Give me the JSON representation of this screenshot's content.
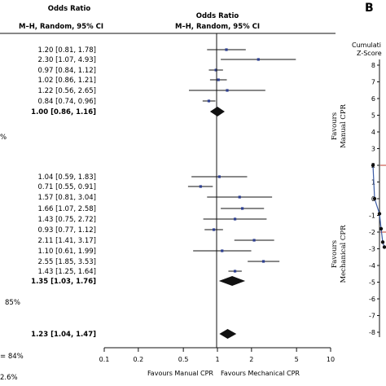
{
  "headers": {
    "left_title": "Odds Ratio",
    "left_sub": "M–H, Random, 95% CI",
    "right_title": "Odds Ratio",
    "right_sub": "M–H, Random, 95% CI"
  },
  "chart_data": {
    "type": "forest",
    "xscale": "log",
    "xlim": [
      0.1,
      10
    ],
    "xticks": [
      "0.1",
      "0.2",
      "0.5",
      "1",
      "2",
      "5",
      "10"
    ],
    "xlabel_left": "Favours Manual CPR",
    "xlabel_right": "Favours Mechanical CPR",
    "rows": [
      {
        "label": "1.20 [0.81, 1.78]",
        "or": 1.2,
        "lo": 0.81,
        "hi": 1.78,
        "pooled": false
      },
      {
        "label": "2.30 [1.07, 4.93]",
        "or": 2.3,
        "lo": 1.07,
        "hi": 4.93,
        "pooled": false
      },
      {
        "label": "0.97 [0.84, 1.12]",
        "or": 0.97,
        "lo": 0.84,
        "hi": 1.12,
        "pooled": false
      },
      {
        "label": "1.02 [0.86, 1.21]",
        "or": 1.02,
        "lo": 0.86,
        "hi": 1.21,
        "pooled": false
      },
      {
        "label": "1.22 [0.56, 2.65]",
        "or": 1.22,
        "lo": 0.56,
        "hi": 2.65,
        "pooled": false
      },
      {
        "label": "0.84 [0.74, 0.96]",
        "or": 0.84,
        "lo": 0.74,
        "hi": 0.96,
        "pooled": false
      },
      {
        "label": "1.00 [0.86, 1.16]",
        "or": 1.0,
        "lo": 0.86,
        "hi": 1.16,
        "pooled": true
      },
      {
        "label": "1.04 [0.59, 1.83]",
        "or": 1.04,
        "lo": 0.59,
        "hi": 1.83,
        "pooled": false
      },
      {
        "label": "0.71 [0.55, 0.91]",
        "or": 0.71,
        "lo": 0.55,
        "hi": 0.91,
        "pooled": false
      },
      {
        "label": "1.57 [0.81, 3.04]",
        "or": 1.57,
        "lo": 0.81,
        "hi": 3.04,
        "pooled": false
      },
      {
        "label": "1.66 [1.07, 2.58]",
        "or": 1.66,
        "lo": 1.07,
        "hi": 2.58,
        "pooled": false
      },
      {
        "label": "1.43 [0.75, 2.72]",
        "or": 1.43,
        "lo": 0.75,
        "hi": 2.72,
        "pooled": false
      },
      {
        "label": "0.93 [0.77, 1.12]",
        "or": 0.93,
        "lo": 0.77,
        "hi": 1.12,
        "pooled": false
      },
      {
        "label": "2.11 [1.41, 3.17]",
        "or": 2.11,
        "lo": 1.41,
        "hi": 3.17,
        "pooled": false
      },
      {
        "label": "1.10 [0.61, 1.99]",
        "or": 1.1,
        "lo": 0.61,
        "hi": 1.99,
        "pooled": false
      },
      {
        "label": "2.55 [1.85, 3.53]",
        "or": 2.55,
        "lo": 1.85,
        "hi": 3.53,
        "pooled": false
      },
      {
        "label": "1.43 [1.25, 1.64]",
        "or": 1.43,
        "lo": 1.25,
        "hi": 1.64,
        "pooled": false
      },
      {
        "label": "1.35 [1.03, 1.76]",
        "or": 1.35,
        "lo": 1.03,
        "hi": 1.76,
        "pooled": true
      },
      {
        "label": "1.23 [1.04, 1.47]",
        "or": 1.23,
        "lo": 1.04,
        "hi": 1.47,
        "pooled": true
      }
    ]
  },
  "left_fragments": [
    "%",
    "85%",
    "= 84%",
    "2.6%"
  ],
  "panel_b": {
    "letter": "B",
    "title_line1": "Cumulati",
    "title_line2": "Z-Score",
    "yticks": [
      "8",
      "7",
      "6",
      "5",
      "4",
      "3",
      "2",
      "1",
      "0",
      "-1",
      "-2",
      "-3",
      "-4",
      "-5",
      "-6",
      "-7",
      "-8"
    ],
    "favours_manual": [
      "Favours",
      "Manual CPR"
    ],
    "favours_mechanical": [
      "Favours",
      "Mechanical CPR"
    ],
    "line_color": "#3b5ba5",
    "boundary_color": "#c0392b",
    "points_z": [
      2,
      0,
      -0.9,
      -1.8,
      -2.6,
      -2.9
    ]
  },
  "colors": {
    "marker": "#2c3e8f",
    "ink": "#111111"
  }
}
